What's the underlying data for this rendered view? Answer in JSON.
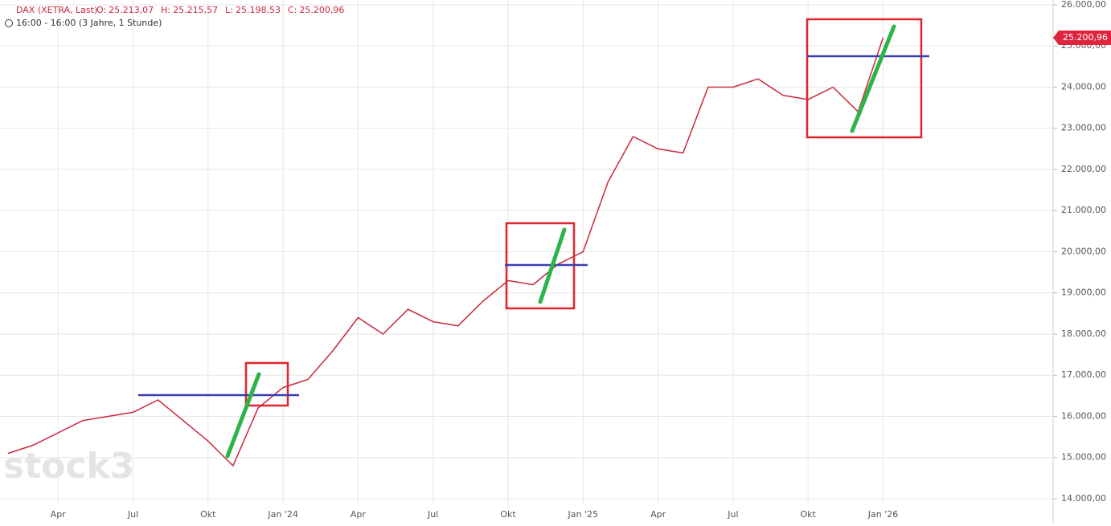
{
  "chart_data": {
    "type": "line",
    "title": "DAX (XETRA, Last)",
    "ohlc": [
      {
        "label": "O:",
        "value": "25.213,07"
      },
      {
        "label": "H:",
        "value": "25.215,57"
      },
      {
        "label": "L:",
        "value": "25.198,53"
      },
      {
        "label": "C:",
        "value": "25.200,96"
      }
    ],
    "subtitle": "16:00 - 16:00 (3 Jahre, 1 Stunde)",
    "watermark": "stock3",
    "last_label": "25.200,96",
    "color": "#c8283c",
    "grid": true,
    "categories": [
      null,
      null,
      "Apr",
      null,
      null,
      "Jul",
      null,
      null,
      "Okt",
      null,
      null,
      "Jan '24",
      null,
      null,
      "Apr",
      null,
      null,
      "Jul",
      null,
      null,
      "Okt",
      null,
      null,
      "Jan '25",
      null,
      null,
      "Apr",
      null,
      null,
      "Jul",
      null,
      null,
      "Okt",
      null,
      null,
      "Jan '26",
      null,
      null,
      null,
      null,
      null,
      null
    ],
    "values": [
      15100,
      15300,
      15600,
      15900,
      16000,
      16100,
      16400,
      15900,
      15400,
      14800,
      16200,
      16700,
      16900,
      17600,
      18400,
      18000,
      18600,
      18300,
      18200,
      18800,
      19300,
      19200,
      19700,
      20000,
      21700,
      22800,
      22500,
      22400,
      24000,
      24000,
      24200,
      23800,
      23700,
      24000,
      23400,
      25200,
      null,
      null,
      null,
      null,
      null,
      null
    ],
    "ylim": [
      13863,
      26117
    ],
    "yticks": [
      {
        "value": 14000,
        "label": "14.000,00"
      },
      {
        "value": 15000,
        "label": "15.000,00"
      },
      {
        "value": 16000,
        "label": "16.000,00"
      },
      {
        "value": 17000,
        "label": "17.000,00"
      },
      {
        "value": 18000,
        "label": "18.000,00"
      },
      {
        "value": 19000,
        "label": "19.000,00"
      },
      {
        "value": 20000,
        "label": "20.000,00"
      },
      {
        "value": 21000,
        "label": "21.000,00"
      },
      {
        "value": 22000,
        "label": "22.000,00"
      },
      {
        "value": 23000,
        "label": "23.000,00"
      },
      {
        "value": 24000,
        "label": "24.000,00"
      },
      {
        "value": 25000,
        "label": "25.000,00"
      },
      {
        "value": 26000,
        "label": "26.000,00"
      }
    ]
  }
}
